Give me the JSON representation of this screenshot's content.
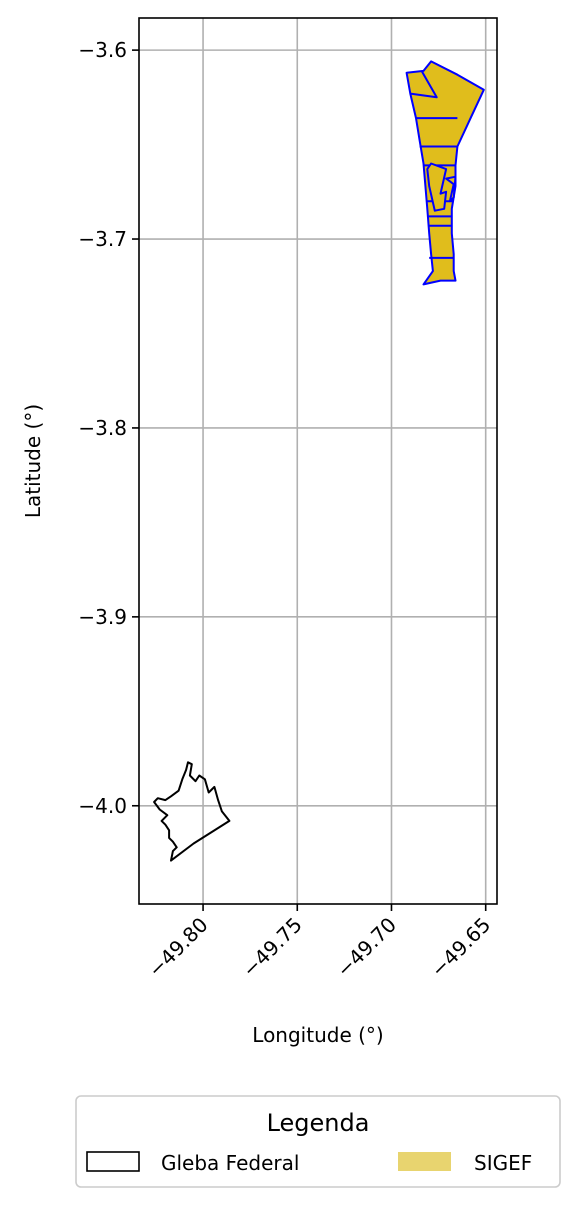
{
  "chart_data": {
    "type": "map",
    "xlabel": "Longitude (°)",
    "ylabel": "Latitude (°)",
    "xlim": [
      -49.834,
      -49.644
    ],
    "ylim": [
      -4.052,
      -3.583
    ],
    "x_ticks": [
      -49.8,
      -49.75,
      -49.7,
      -49.65
    ],
    "x_tick_labels": [
      "−49.80",
      "−49.75",
      "−49.70",
      "−49.65"
    ],
    "y_ticks": [
      -3.6,
      -3.7,
      -3.8,
      -3.9,
      -4.0
    ],
    "y_tick_labels": [
      "−3.6",
      "−3.7",
      "−3.8",
      "−3.9",
      "−4.0"
    ],
    "grid": true,
    "legend": {
      "title": "Legenda",
      "placement": "bottom",
      "entries": [
        {
          "label": "Gleba Federal",
          "style": "outline",
          "color": "#000000"
        },
        {
          "label": "SIGEF",
          "style": "fill",
          "color": "#e8d46f"
        }
      ]
    },
    "colors": {
      "sigef_fill": "#e0bd1c",
      "sigef_edge": "#0000ff",
      "gleba_edge": "#000000",
      "grid": "#b0b0b0"
    },
    "layers": [
      {
        "name": "Gleba Federal",
        "polygons": [
          [
            [
              -49.808,
              -3.977
            ],
            [
              -49.806,
              -3.978
            ],
            [
              -49.807,
              -3.984
            ],
            [
              -49.804,
              -3.987
            ],
            [
              -49.802,
              -3.984
            ],
            [
              -49.799,
              -3.986
            ],
            [
              -49.797,
              -3.993
            ],
            [
              -49.794,
              -3.99
            ],
            [
              -49.792,
              -3.997
            ],
            [
              -49.79,
              -4.003
            ],
            [
              -49.786,
              -4.008
            ],
            [
              -49.805,
              -4.02
            ],
            [
              -49.817,
              -4.029
            ],
            [
              -49.816,
              -4.024
            ],
            [
              -49.814,
              -4.022
            ],
            [
              -49.816,
              -4.019
            ],
            [
              -49.818,
              -4.017
            ],
            [
              -49.818,
              -4.013
            ],
            [
              -49.82,
              -4.01
            ],
            [
              -49.822,
              -4.008
            ],
            [
              -49.819,
              -4.005
            ],
            [
              -49.823,
              -4.002
            ],
            [
              -49.826,
              -3.998
            ],
            [
              -49.824,
              -3.996
            ],
            [
              -49.82,
              -3.997
            ],
            [
              -49.817,
              -3.995
            ],
            [
              -49.813,
              -3.992
            ],
            [
              -49.811,
              -3.986
            ],
            [
              -49.809,
              -3.981
            ]
          ]
        ]
      },
      {
        "name": "SIGEF",
        "polygons": [
          [
            [
              -49.683,
              -3.611
            ],
            [
              -49.679,
              -3.606
            ],
            [
              -49.665,
              -3.613
            ],
            [
              -49.651,
              -3.621
            ],
            [
              -49.658,
              -3.636
            ],
            [
              -49.665,
              -3.651
            ],
            [
              -49.666,
              -3.661
            ],
            [
              -49.666,
              -3.672
            ],
            [
              -49.668,
              -3.684
            ],
            [
              -49.668,
              -3.697
            ],
            [
              -49.667,
              -3.708
            ],
            [
              -49.667,
              -3.717
            ],
            [
              -49.666,
              -3.722
            ],
            [
              -49.674,
              -3.722
            ],
            [
              -49.683,
              -3.724
            ],
            [
              -49.678,
              -3.717
            ],
            [
              -49.679,
              -3.708
            ],
            [
              -49.68,
              -3.697
            ],
            [
              -49.681,
              -3.684
            ],
            [
              -49.682,
              -3.672
            ],
            [
              -49.683,
              -3.66
            ],
            [
              -49.685,
              -3.648
            ],
            [
              -49.687,
              -3.636
            ],
            [
              -49.69,
              -3.623
            ],
            [
              -49.692,
              -3.612
            ]
          ],
          [
            [
              -49.69,
              -3.623
            ],
            [
              -49.676,
              -3.625
            ],
            [
              -49.684,
              -3.611
            ]
          ],
          [
            [
              -49.687,
              -3.636
            ],
            [
              -49.665,
              -3.636
            ]
          ],
          [
            [
              -49.685,
              -3.651
            ],
            [
              -49.665,
              -3.651
            ]
          ],
          [
            [
              -49.683,
              -3.661
            ],
            [
              -49.666,
              -3.661
            ]
          ],
          [
            [
              -49.681,
              -3.68
            ],
            [
              -49.667,
              -3.68
            ]
          ],
          [
            [
              -49.681,
              -3.688
            ],
            [
              -49.668,
              -3.688
            ]
          ],
          [
            [
              -49.68,
              -3.693
            ],
            [
              -49.668,
              -3.693
            ]
          ],
          [
            [
              -49.68,
              -3.71
            ],
            [
              -49.667,
              -3.71
            ]
          ],
          [
            [
              -49.679,
              -3.66
            ],
            [
              -49.671,
              -3.663
            ],
            [
              -49.674,
              -3.676
            ],
            [
              -49.671,
              -3.675
            ],
            [
              -49.672,
              -3.684
            ],
            [
              -49.677,
              -3.685
            ],
            [
              -49.68,
              -3.672
            ],
            [
              -49.681,
              -3.663
            ]
          ],
          [
            [
              -49.671,
              -3.668
            ],
            [
              -49.667,
              -3.671
            ],
            [
              -49.669,
              -3.68
            ],
            [
              -49.667,
              -3.678
            ],
            [
              -49.666,
              -3.667
            ]
          ]
        ]
      }
    ]
  }
}
